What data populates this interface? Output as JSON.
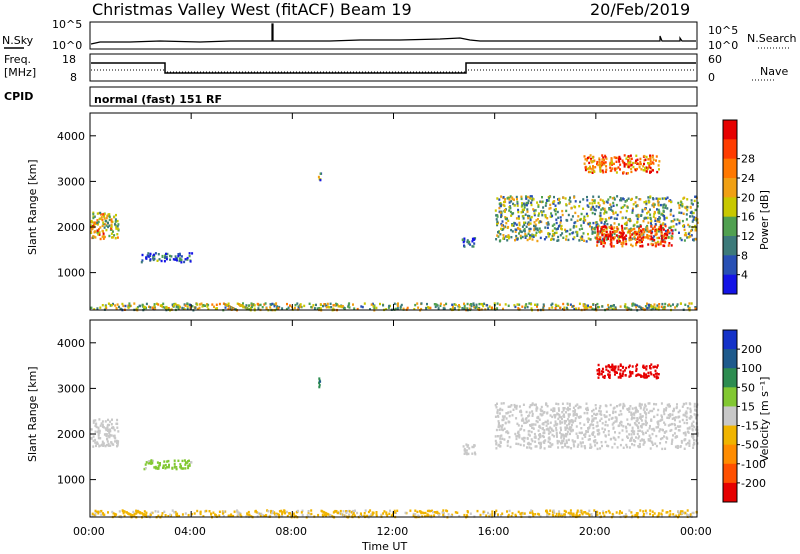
{
  "header": {
    "station": "Christmas Valley West (fitACF)",
    "beam": "Beam 19",
    "date": "20/Feb/2019"
  },
  "top_panels": {
    "nsky_label": "N.Sky",
    "nsearch_label": "N.Search",
    "count_ticks_left": [
      "10^5",
      "10^0"
    ],
    "count_ticks_right": [
      "10^5",
      "10^0"
    ],
    "freq_label": "Freq.",
    "freq_unit": "[MHz]",
    "freq_ticks": [
      "18",
      "8"
    ],
    "nave_label": "Nave",
    "nave_ticks": [
      "60",
      "0"
    ],
    "cpid_label": "CPID",
    "cpid_value": "normal (fast) 151 RF"
  },
  "chart_data": [
    {
      "type": "heatmap",
      "name": "power",
      "ylabel": "Slant Range [km]",
      "xlabel": "",
      "x_ticks": [
        "00:00",
        "04:00",
        "08:00",
        "12:00",
        "16:00",
        "20:00",
        "00:00"
      ],
      "y_ticks": [
        "1000",
        "2000",
        "3000",
        "4000"
      ],
      "xlim": [
        0,
        24
      ],
      "ylim": [
        180,
        4500
      ],
      "colorbar_label": "Power [dB]",
      "colorbar_ticks": [
        "4",
        "8",
        "12",
        "16",
        "20",
        "24",
        "28"
      ],
      "colorbar_range": [
        0,
        30
      ],
      "colorbar_colors": [
        "#1414e6",
        "#2850b4",
        "#3c7a7a",
        "#50a050",
        "#c8c800",
        "#f0a014",
        "#ff7800",
        "#ff3c00",
        "#e60000"
      ],
      "regions": [
        {
          "t": [
            0.0,
            1.1
          ],
          "r": [
            1750,
            2350
          ],
          "v": 16
        },
        {
          "t": [
            0.0,
            0.5
          ],
          "r": [
            1850,
            2050
          ],
          "v": 24
        },
        {
          "t": [
            2.0,
            4.0
          ],
          "r": [
            1250,
            1450
          ],
          "v": 6
        },
        {
          "t": [
            9.0,
            9.1
          ],
          "r": [
            3050,
            3250
          ],
          "v": 10
        },
        {
          "t": [
            14.7,
            15.2
          ],
          "r": [
            1550,
            1800
          ],
          "v": 6
        },
        {
          "t": [
            16.0,
            24.0
          ],
          "r": [
            1700,
            2700
          ],
          "v": 12
        },
        {
          "t": [
            20.0,
            23.0
          ],
          "r": [
            1600,
            2050
          ],
          "v": 26
        },
        {
          "t": [
            19.5,
            22.5
          ],
          "r": [
            3200,
            3600
          ],
          "v": 22
        },
        {
          "t": [
            0.0,
            24.0
          ],
          "r": [
            200,
            350
          ],
          "v": 14
        }
      ]
    },
    {
      "type": "heatmap",
      "name": "velocity",
      "ylabel": "Slant Range [km]",
      "xlabel": "Time UT",
      "x_ticks": [
        "00:00",
        "04:00",
        "08:00",
        "12:00",
        "16:00",
        "20:00",
        "00:00"
      ],
      "y_ticks": [
        "1000",
        "2000",
        "3000",
        "4000"
      ],
      "xlim": [
        0,
        24
      ],
      "ylim": [
        180,
        4500
      ],
      "colorbar_label": "Velocity [m s⁻¹]",
      "colorbar_ticks": [
        "200",
        "100",
        "50",
        "15",
        "-15",
        "-50",
        "-100",
        "-200"
      ],
      "colorbar_range": [
        -250,
        250
      ],
      "colorbar_colors": [
        "#1432c8",
        "#1e5a8c",
        "#2d8c50",
        "#82c832",
        "#c8c8c8",
        "#f0b400",
        "#ff8c00",
        "#ff5000",
        "#e60000"
      ],
      "regions": [
        {
          "t": [
            0.0,
            1.1
          ],
          "r": [
            1750,
            2350
          ],
          "v": 0
        },
        {
          "t": [
            2.0,
            4.0
          ],
          "r": [
            1250,
            1450
          ],
          "v": 45
        },
        {
          "t": [
            9.0,
            9.1
          ],
          "r": [
            3050,
            3250
          ],
          "v": 120
        },
        {
          "t": [
            14.7,
            15.2
          ],
          "r": [
            1550,
            1800
          ],
          "v": 0
        },
        {
          "t": [
            16.0,
            24.0
          ],
          "r": [
            1700,
            2700
          ],
          "v": 0
        },
        {
          "t": [
            20.0,
            22.5
          ],
          "r": [
            3250,
            3550
          ],
          "v": -220
        },
        {
          "t": [
            0.0,
            24.0
          ],
          "r": [
            200,
            350
          ],
          "v": -40
        }
      ]
    }
  ]
}
